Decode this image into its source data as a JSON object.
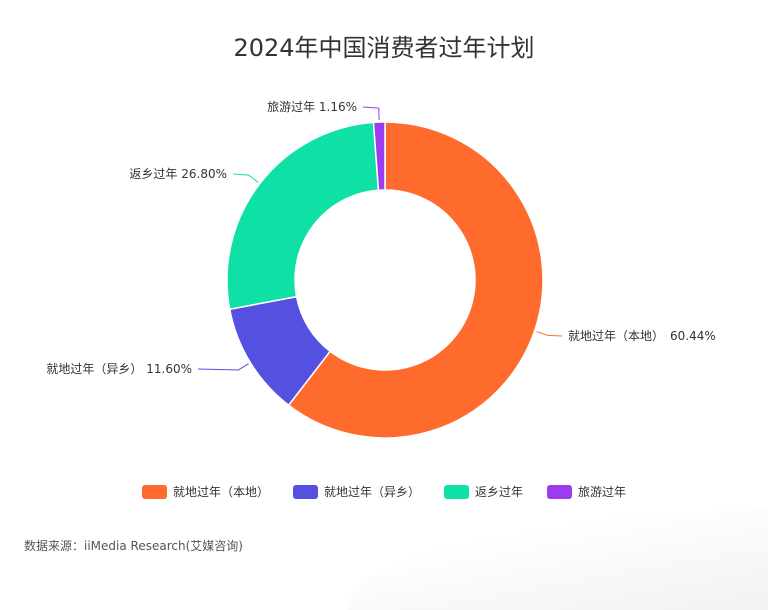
{
  "title": "2024年中国消费者过年计划",
  "source": "数据来源：iiMedia Research(艾媒咨询)",
  "colors": {
    "local_home": "#FF6B2C",
    "local_other": "#5450E0",
    "return_home": "#0FE0A6",
    "travel": "#9B3CF2"
  },
  "chart_data": {
    "type": "pie",
    "donut": true,
    "title": "2024年中国消费者过年计划",
    "slices": [
      {
        "name": "就地过年（本地）",
        "value": 60.44,
        "label": "就地过年（本地）　60.44%",
        "color": "#FF6B2C"
      },
      {
        "name": "就地过年（异乡）",
        "value": 11.6,
        "label": "就地过年（异乡）  11.60%",
        "color": "#5450E0"
      },
      {
        "name": "返乡过年",
        "value": 26.8,
        "label": "返乡过年 26.80%",
        "color": "#0FE0A6"
      },
      {
        "name": "旅游过年",
        "value": 1.16,
        "label": "旅游过年 1.16%",
        "color": "#9B3CF2"
      }
    ],
    "legend_position": "bottom"
  }
}
